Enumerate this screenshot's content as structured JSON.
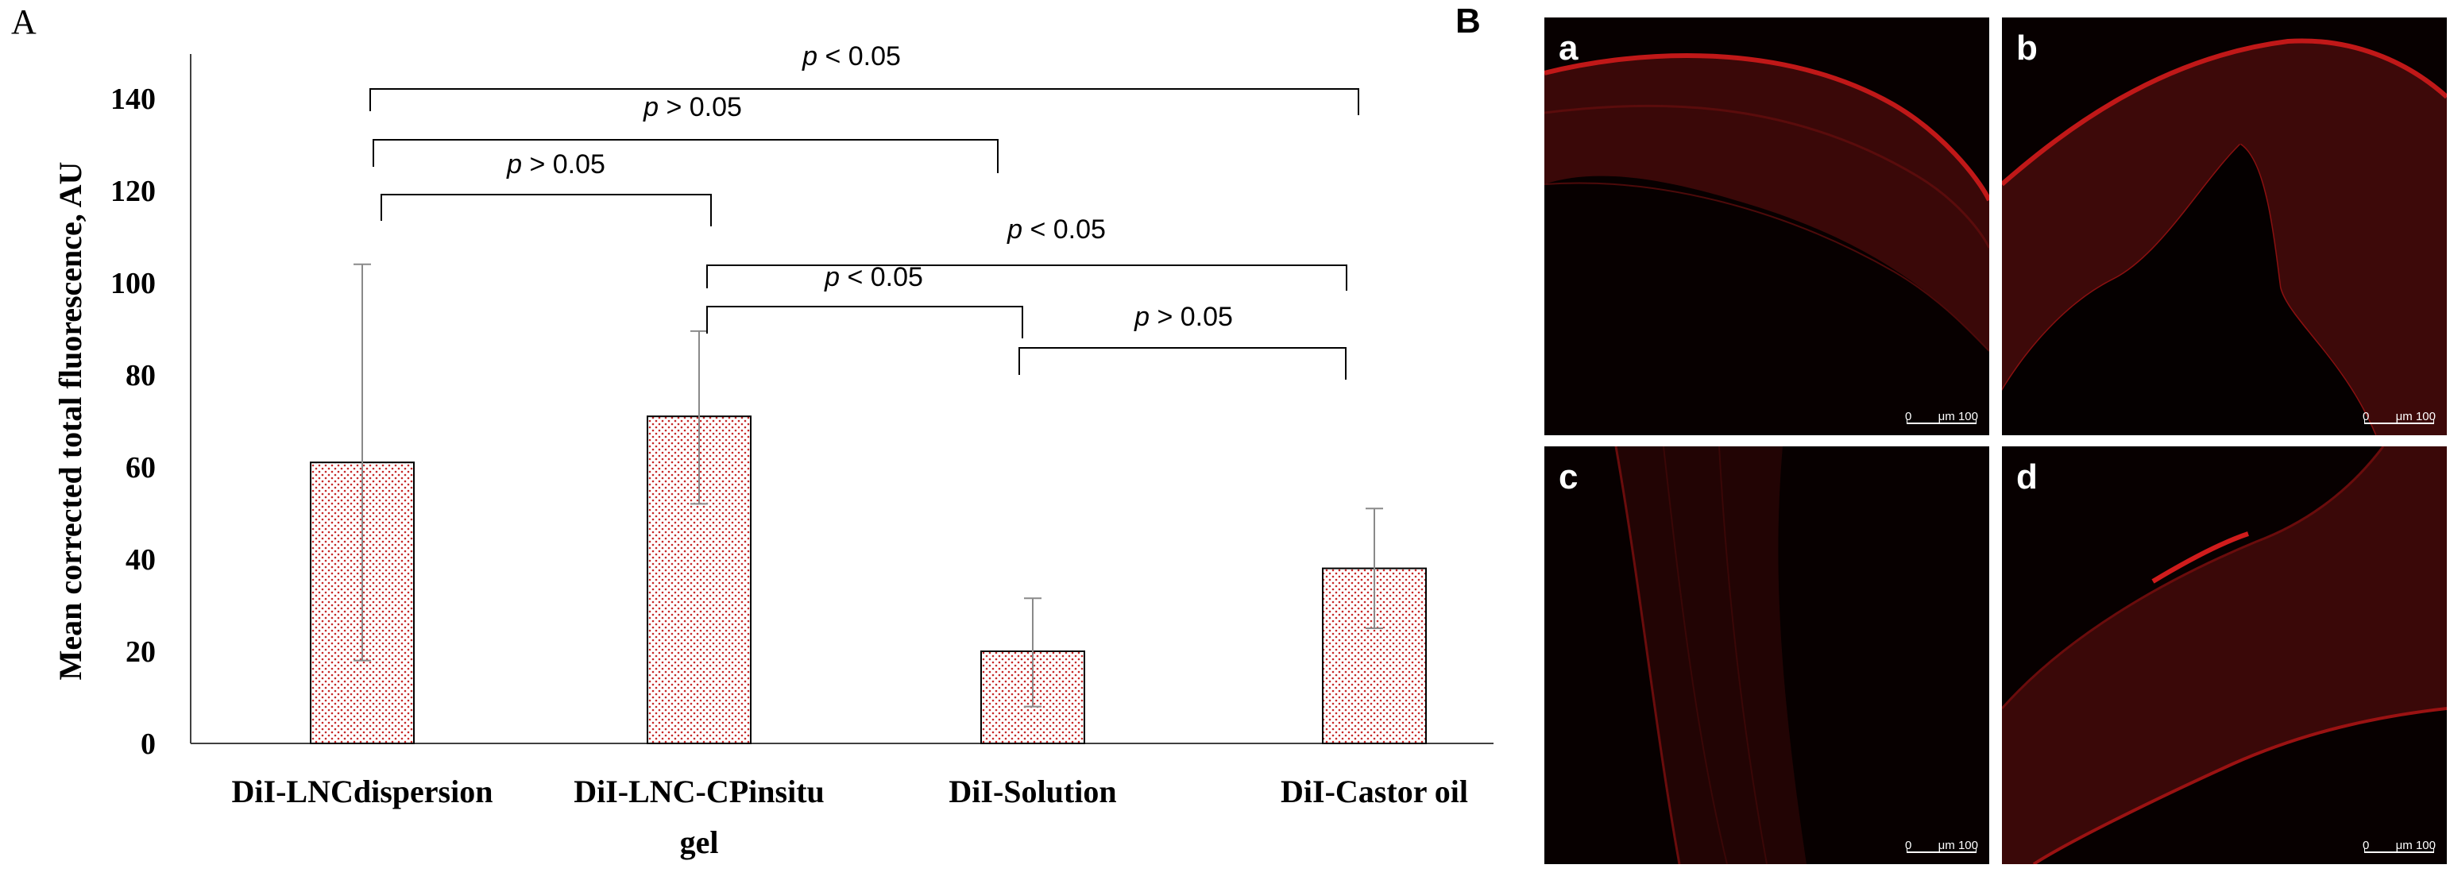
{
  "panel_a_label": "A",
  "panel_b_label": "B",
  "chart_data": {
    "type": "bar",
    "title": "",
    "xlabel": "",
    "ylabel": "Mean corrected total fluorescence, AU",
    "ylim": [
      0,
      140
    ],
    "yticks": [
      "0",
      "20",
      "40",
      "60",
      "80",
      "100",
      "120",
      "140"
    ],
    "categories": [
      [
        "DiI-LNCdispersion"
      ],
      [
        "DiI-LNC-CPinsitu",
        "gel"
      ],
      [
        "DiI-Solution"
      ],
      [
        "DiI-Castor oil"
      ]
    ],
    "values": [
      61,
      71,
      20,
      38
    ],
    "error_low": [
      18,
      52,
      8,
      25
    ],
    "error_high": [
      104,
      89.5,
      31.5,
      51
    ],
    "bar_fill": "#c62828",
    "grid": false,
    "legend": "none",
    "significance": [
      {
        "from": 0,
        "to": 3,
        "italic": "p",
        "text": " < 0.05"
      },
      {
        "from": 0,
        "to": 2,
        "italic": "p",
        "text": " > 0.05"
      },
      {
        "from": 0,
        "to": 1,
        "italic": "p",
        "text": " > 0.05"
      },
      {
        "from": 1,
        "to": 3,
        "italic": "p",
        "text": " < 0.05"
      },
      {
        "from": 1,
        "to": 2,
        "italic": "p",
        "text": " < 0.05"
      },
      {
        "from": 2,
        "to": 3,
        "italic": "p",
        "text": " > 0.05"
      }
    ]
  },
  "micrographs": [
    {
      "letter": "a",
      "scale_zero": "0",
      "scale_unit": "μm 100"
    },
    {
      "letter": "b",
      "scale_zero": "0",
      "scale_unit": "μm 100"
    },
    {
      "letter": "c",
      "scale_zero": "0",
      "scale_unit": "μm 100"
    },
    {
      "letter": "d",
      "scale_zero": "0",
      "scale_unit": "μm 100"
    }
  ]
}
